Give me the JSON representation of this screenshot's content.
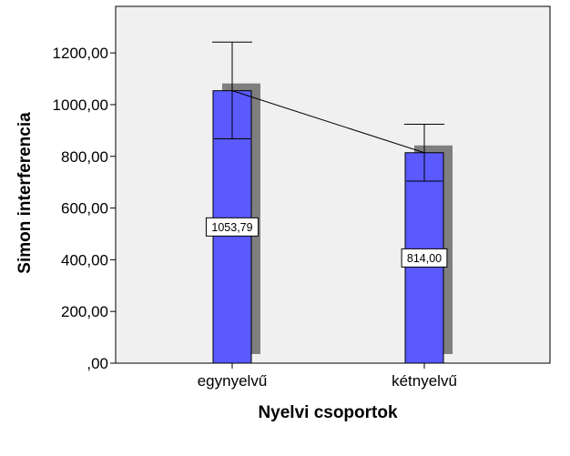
{
  "chart_data": {
    "type": "bar",
    "title": "",
    "xlabel": "Nyelvi csoportok",
    "ylabel": "Simon interferencia",
    "categories": [
      "egynyelvű",
      "kétnyelvű"
    ],
    "values": [
      1053.79,
      814.0
    ],
    "value_labels": [
      "1053,79",
      "814,00"
    ],
    "error_bars": [
      {
        "low": 868,
        "high": 1242
      },
      {
        "low": 704,
        "high": 924
      }
    ],
    "yticks": [
      0,
      200,
      400,
      600,
      800,
      1000,
      1200
    ],
    "ytick_labels": [
      ",00",
      "200,00",
      "400,00",
      "600,00",
      "800,00",
      "1000,00",
      "1200,00"
    ],
    "ylim": [
      0,
      1380
    ],
    "grid": false,
    "legend": "none",
    "colors": {
      "bar": "#5a5aff",
      "shadow": "#7f7f7f",
      "plot_bg": "#f0f0f0",
      "frame": "#000000"
    }
  }
}
